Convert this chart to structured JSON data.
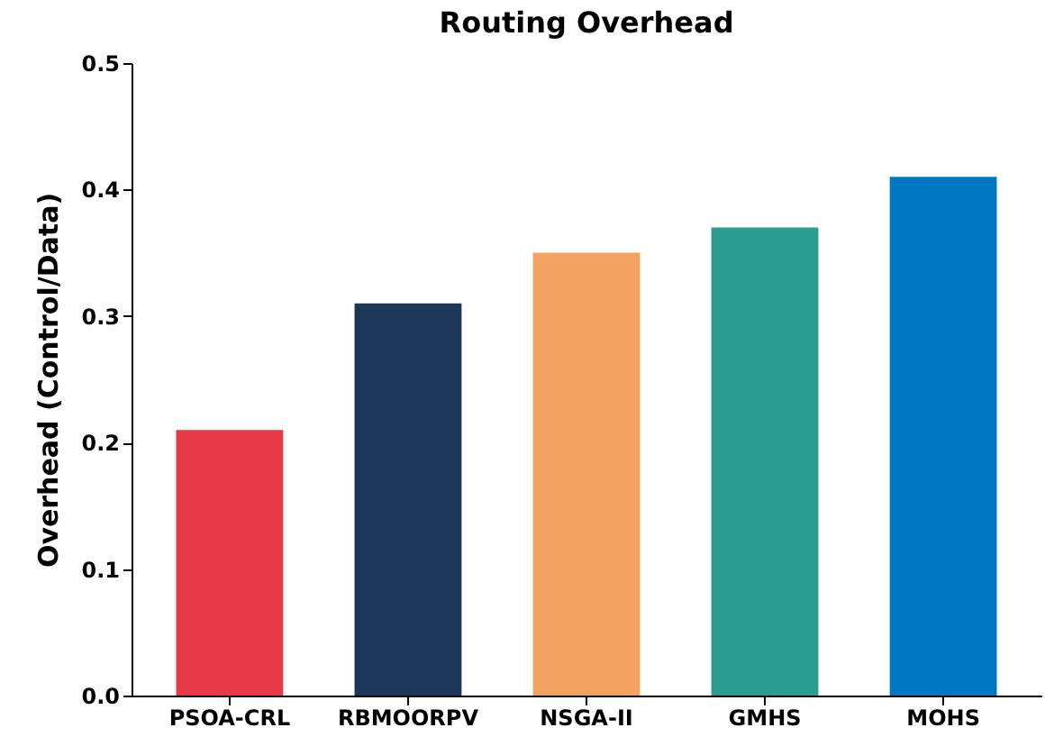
{
  "chart_data": {
    "type": "bar",
    "title": "Routing Overhead",
    "ylabel": "Overhead (Control/Data)",
    "categories": [
      "PSOA-CRL",
      "RBMOORPV",
      "NSGA-II",
      "GMHS",
      "MOHS"
    ],
    "values": [
      0.21,
      0.31,
      0.35,
      0.37,
      0.41
    ],
    "colors": [
      "#e63946",
      "#1d3557",
      "#f4a261",
      "#2a9d8f",
      "#0077c0"
    ],
    "ylim": [
      0,
      0.5
    ],
    "yticks": [
      {
        "value": 0,
        "label": "0.0"
      },
      0.1,
      0.2,
      0.3,
      0.4,
      0.5
    ],
    "grid": false
  }
}
